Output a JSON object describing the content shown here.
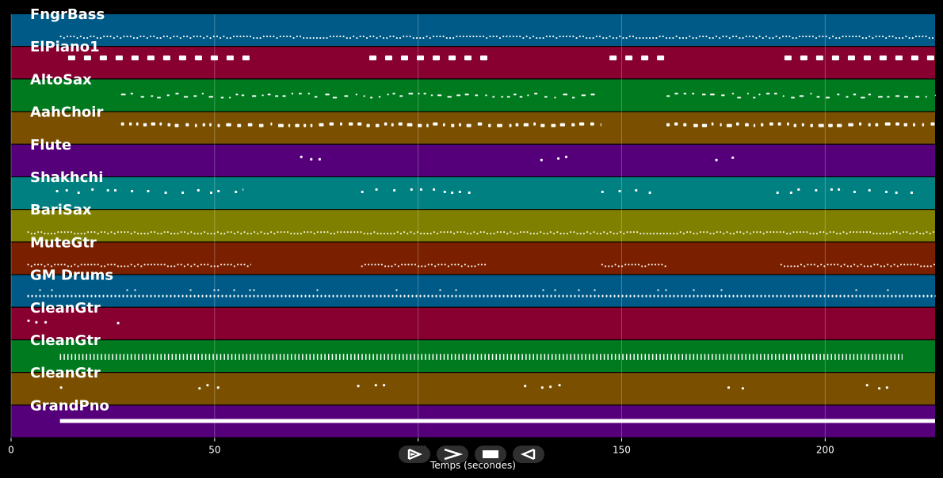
{
  "chart_data": {
    "type": "piano-roll",
    "xlabel": "Temps (secondes)",
    "x_ticks": [
      0,
      50,
      100,
      150,
      200
    ],
    "xlim": [
      0,
      227
    ],
    "grid": true,
    "tracks": [
      {
        "name": "FngrBass",
        "color": "#005a87",
        "pattern": "dense",
        "segments": [
          [
            12,
            227
          ]
        ]
      },
      {
        "name": "ElPiano1",
        "color": "#870030",
        "pattern": "blocks",
        "segments": [
          [
            14,
            59
          ],
          [
            88,
            118
          ],
          [
            147,
            161
          ],
          [
            190,
            227
          ]
        ]
      },
      {
        "name": "AltoSax",
        "color": "#007a1e",
        "pattern": "phrases",
        "segments": [
          [
            27,
            145
          ],
          [
            161,
            227
          ]
        ]
      },
      {
        "name": "AahChoir",
        "color": "#7a5000",
        "pattern": "chords",
        "segments": [
          [
            27,
            145
          ],
          [
            161,
            227
          ]
        ]
      },
      {
        "name": "Flute",
        "color": "#55007a",
        "pattern": "sparse",
        "segments": [
          [
            71,
            78
          ],
          [
            130,
            137
          ],
          [
            173,
            180
          ]
        ]
      },
      {
        "name": "Shakhchi",
        "color": "#008080",
        "pattern": "sparse",
        "segments": [
          [
            11,
            57
          ],
          [
            86,
            115
          ],
          [
            145,
            158
          ],
          [
            188,
            223
          ]
        ]
      },
      {
        "name": "BariSax",
        "color": "#808000",
        "pattern": "dense",
        "segments": [
          [
            4,
            227
          ]
        ]
      },
      {
        "name": "MuteGtr",
        "color": "#7a2000",
        "pattern": "dense",
        "segments": [
          [
            4,
            59
          ],
          [
            86,
            117
          ],
          [
            145,
            161
          ],
          [
            189,
            227
          ]
        ]
      },
      {
        "name": "GM Drums",
        "color": "#005a87",
        "pattern": "drums",
        "segments": [
          [
            4,
            227
          ]
        ]
      },
      {
        "name": "CleanGtr",
        "color": "#870030",
        "pattern": "sparse",
        "segments": [
          [
            4,
            12
          ],
          [
            26,
            28
          ]
        ]
      },
      {
        "name": "CleanGtr",
        "color": "#007a1e",
        "pattern": "strum",
        "segments": [
          [
            12,
            219
          ]
        ]
      },
      {
        "name": "CleanGtr",
        "color": "#7a5000",
        "pattern": "sparse",
        "segments": [
          [
            12,
            13
          ],
          [
            46,
            53
          ],
          [
            85,
            92
          ],
          [
            126,
            136
          ],
          [
            176,
            183
          ],
          [
            210,
            216
          ]
        ]
      },
      {
        "name": "GrandPno",
        "color": "#55007a",
        "pattern": "solid",
        "segments": [
          [
            12,
            227
          ]
        ]
      }
    ]
  },
  "controls": [
    {
      "name": "play-button",
      "icon": "play-outline-icon"
    },
    {
      "name": "fast-forward-button",
      "icon": "chevron-right-icon"
    },
    {
      "name": "stop-button",
      "icon": "stop-icon"
    },
    {
      "name": "rewind-button",
      "icon": "play-reverse-icon"
    }
  ]
}
